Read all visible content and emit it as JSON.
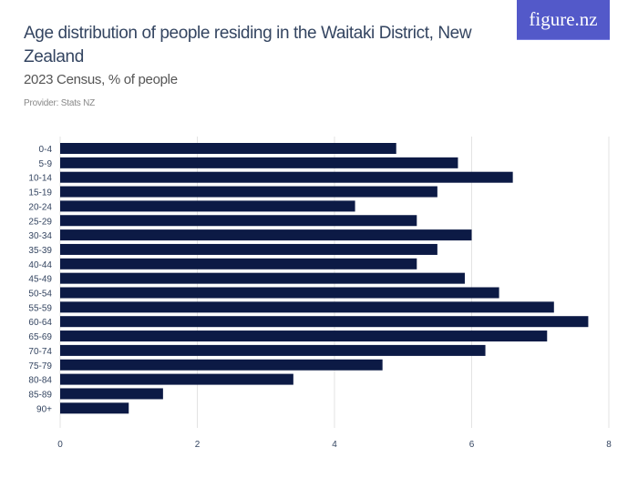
{
  "header": {
    "title": "Age distribution of people residing in the Waitaki District, New Zealand",
    "subtitle": "2023 Census, % of people",
    "provider": "Provider: Stats NZ",
    "logo": "figure.nz"
  },
  "colors": {
    "bar": "#0c1a45",
    "grid": "#e3e3e3",
    "logo_bg": "#5359c9"
  },
  "chart_data": {
    "type": "bar",
    "orientation": "horizontal",
    "title": "Age distribution of people residing in the Waitaki District, New Zealand",
    "subtitle": "2023 Census, % of people",
    "categories": [
      "0-4",
      "5-9",
      "10-14",
      "15-19",
      "20-24",
      "25-29",
      "30-34",
      "35-39",
      "40-44",
      "45-49",
      "50-54",
      "55-59",
      "60-64",
      "65-69",
      "70-74",
      "75-79",
      "80-84",
      "85-89",
      "90+"
    ],
    "values": [
      4.9,
      5.8,
      6.6,
      5.5,
      4.3,
      5.2,
      6.0,
      5.5,
      5.2,
      5.9,
      6.4,
      7.2,
      7.7,
      7.1,
      6.2,
      4.7,
      3.4,
      1.5,
      1.0
    ],
    "xlim": [
      0,
      8
    ],
    "xticks": [
      0,
      2,
      4,
      6,
      8
    ],
    "grid": true,
    "legend": "none"
  }
}
